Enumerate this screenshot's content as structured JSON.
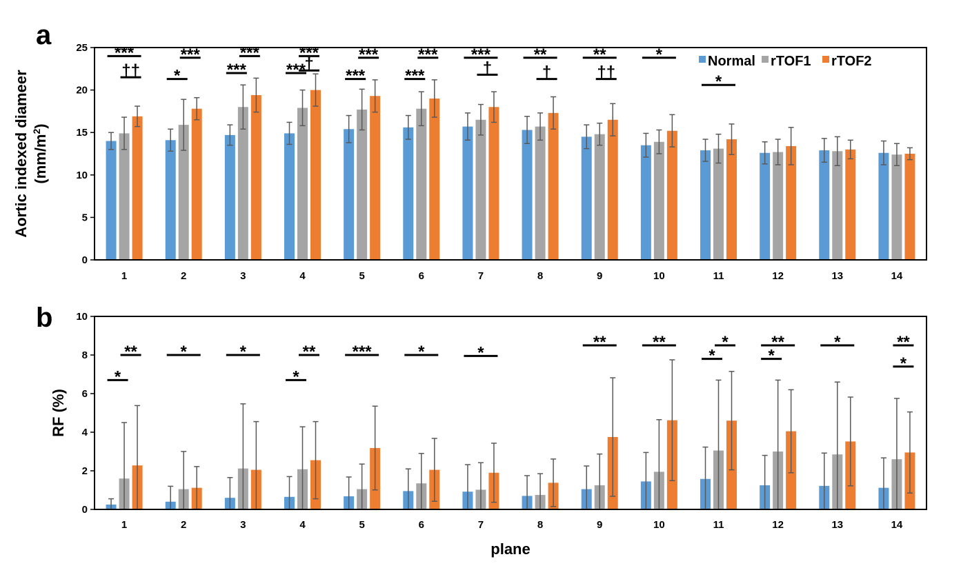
{
  "colors": {
    "Normal": "#5b9bd5",
    "rTOF1": "#a5a5a5",
    "rTOF2": "#ed7d31",
    "errorbar": "#595959"
  },
  "chart_data": [
    {
      "panel": "a",
      "type": "bar",
      "title": "",
      "xlabel": "",
      "ylabel": [
        "Aortic indexed diameer",
        "(mm/m",
        "2",
        ")"
      ],
      "ylim": [
        0,
        25
      ],
      "yticks": [
        0,
        5,
        10,
        15,
        20,
        25
      ],
      "categories": [
        "1",
        "2",
        "3",
        "4",
        "5",
        "6",
        "7",
        "8",
        "9",
        "10",
        "11",
        "12",
        "13",
        "14"
      ],
      "legend": {
        "position": "top-right",
        "items": [
          "Normal",
          "rTOF1",
          "rTOF2"
        ]
      },
      "series": [
        {
          "name": "Normal",
          "values": [
            14.0,
            14.1,
            14.7,
            14.9,
            15.4,
            15.6,
            15.7,
            15.3,
            14.5,
            13.5,
            12.9,
            12.6,
            12.9,
            12.6
          ],
          "errors": [
            1.0,
            1.3,
            1.2,
            1.3,
            1.6,
            1.4,
            1.6,
            1.6,
            1.4,
            1.4,
            1.3,
            1.3,
            1.4,
            1.4
          ]
        },
        {
          "name": "rTOF1",
          "values": [
            14.9,
            15.9,
            18.0,
            17.9,
            17.7,
            17.8,
            16.5,
            15.7,
            14.8,
            13.9,
            13.1,
            12.7,
            12.8,
            12.4
          ],
          "errors": [
            1.9,
            3.0,
            2.6,
            2.1,
            2.4,
            2.0,
            1.8,
            1.6,
            1.3,
            1.4,
            1.7,
            1.5,
            1.7,
            1.3
          ]
        },
        {
          "name": "rTOF2",
          "values": [
            16.9,
            17.8,
            19.4,
            20.0,
            19.3,
            19.0,
            18.0,
            17.3,
            16.5,
            15.2,
            14.2,
            13.4,
            13.0,
            12.5
          ],
          "errors": [
            1.2,
            1.3,
            2.0,
            1.9,
            1.9,
            2.2,
            1.8,
            1.9,
            1.9,
            1.9,
            1.8,
            2.2,
            1.1,
            0.7
          ]
        }
      ],
      "annotations": [
        {
          "category": 1,
          "between": [
            "Normal",
            "rTOF2"
          ],
          "label": "***",
          "level": 24.0
        },
        {
          "category": 1,
          "between": [
            "rTOF1",
            "rTOF2"
          ],
          "label": "††",
          "level": 21.5
        },
        {
          "category": 2,
          "between": [
            "Normal",
            "rTOF1"
          ],
          "label": "*",
          "level": 21.3
        },
        {
          "category": 2,
          "between": [
            "rTOF1",
            "rTOF2"
          ],
          "label": "***",
          "level": 23.8
        },
        {
          "category": 3,
          "between": [
            "Normal",
            "rTOF1"
          ],
          "label": "***",
          "level": 22.0
        },
        {
          "category": 3,
          "between": [
            "rTOF1",
            "rTOF2"
          ],
          "label": "***",
          "level": 24.0
        },
        {
          "category": 4,
          "between": [
            "Normal",
            "rTOF1"
          ],
          "label": "***",
          "level": 22.0
        },
        {
          "category": 4,
          "between": [
            "rTOF1",
            "rTOF2"
          ],
          "label": "***",
          "level": 24.0
        },
        {
          "category": 4,
          "between": [
            "rTOF1",
            "rTOF2"
          ],
          "label": "†",
          "level": 22.3
        },
        {
          "category": 5,
          "between": [
            "Normal",
            "rTOF1"
          ],
          "label": "***",
          "level": 21.3
        },
        {
          "category": 5,
          "between": [
            "rTOF1",
            "rTOF2"
          ],
          "label": "***",
          "level": 23.8
        },
        {
          "category": 6,
          "between": [
            "Normal",
            "rTOF1"
          ],
          "label": "***",
          "level": 21.3
        },
        {
          "category": 6,
          "between": [
            "rTOF1",
            "rTOF2"
          ],
          "label": "***",
          "level": 23.8
        },
        {
          "category": 7,
          "between": [
            "Normal",
            "rTOF2"
          ],
          "label": "***",
          "level": 23.8
        },
        {
          "category": 7,
          "between": [
            "rTOF1",
            "rTOF2"
          ],
          "label": "†",
          "level": 21.8
        },
        {
          "category": 8,
          "between": [
            "Normal",
            "rTOF2"
          ],
          "label": "**",
          "level": 23.8
        },
        {
          "category": 8,
          "between": [
            "rTOF1",
            "rTOF2"
          ],
          "label": "†",
          "level": 21.3
        },
        {
          "category": 9,
          "between": [
            "Normal",
            "rTOF2"
          ],
          "label": "**",
          "level": 23.8
        },
        {
          "category": 9,
          "between": [
            "rTOF1",
            "rTOF2"
          ],
          "label": "††",
          "level": 21.3
        },
        {
          "category": 10,
          "between": [
            "Normal",
            "rTOF2"
          ],
          "label": "*",
          "level": 23.8
        },
        {
          "category": 11,
          "between": [
            "Normal",
            "rTOF2"
          ],
          "label": "*",
          "level": 20.6
        }
      ]
    },
    {
      "panel": "b",
      "type": "bar",
      "title": "",
      "xlabel": "plane",
      "ylabel": [
        "RF (%)"
      ],
      "ylim": [
        0,
        10
      ],
      "yticks": [
        0,
        2,
        4,
        6,
        8,
        10
      ],
      "categories": [
        "1",
        "2",
        "3",
        "4",
        "5",
        "6",
        "7",
        "8",
        "9",
        "10",
        "11",
        "12",
        "13",
        "14"
      ],
      "series": [
        {
          "name": "Normal",
          "values": [
            0.25,
            0.4,
            0.6,
            0.65,
            0.68,
            0.95,
            0.92,
            0.7,
            1.05,
            1.45,
            1.58,
            1.25,
            1.22,
            1.12
          ],
          "errors": [
            0.3,
            0.8,
            1.05,
            1.05,
            1.0,
            1.15,
            1.4,
            1.05,
            1.2,
            1.5,
            1.65,
            1.55,
            1.7,
            1.55
          ]
        },
        {
          "name": "rTOF1",
          "values": [
            1.6,
            1.05,
            2.12,
            2.08,
            1.05,
            1.35,
            1.02,
            0.75,
            1.25,
            1.95,
            3.05,
            3.0,
            2.85,
            2.6
          ],
          "errors": [
            2.9,
            1.95,
            3.35,
            2.2,
            1.3,
            1.55,
            1.4,
            1.1,
            1.62,
            2.7,
            3.65,
            3.7,
            3.75,
            3.15
          ]
        },
        {
          "name": "rTOF2",
          "values": [
            2.28,
            1.12,
            2.05,
            2.55,
            3.18,
            2.05,
            1.9,
            1.38,
            3.75,
            4.62,
            4.6,
            4.05,
            3.52,
            2.95
          ],
          "errors": [
            3.1,
            1.1,
            2.5,
            2.0,
            2.17,
            1.63,
            1.53,
            1.23,
            3.07,
            3.13,
            2.55,
            2.15,
            2.3,
            2.1
          ]
        }
      ],
      "annotations": [
        {
          "category": 1,
          "between": [
            "Normal",
            "rTOF1"
          ],
          "label": "*",
          "level": 6.7
        },
        {
          "category": 1,
          "between": [
            "rTOF1",
            "rTOF2"
          ],
          "label": "**",
          "level": 8.0
        },
        {
          "category": 2,
          "between": [
            "Normal",
            "rTOF2"
          ],
          "label": "*",
          "level": 8.0
        },
        {
          "category": 3,
          "between": [
            "Normal",
            "rTOF2"
          ],
          "label": "*",
          "level": 8.0
        },
        {
          "category": 4,
          "between": [
            "Normal",
            "rTOF1"
          ],
          "label": "*",
          "level": 6.7
        },
        {
          "category": 4,
          "between": [
            "rTOF1",
            "rTOF2"
          ],
          "label": "**",
          "level": 8.0
        },
        {
          "category": 5,
          "between": [
            "Normal",
            "rTOF2"
          ],
          "label": "***",
          "level": 8.0
        },
        {
          "category": 6,
          "between": [
            "Normal",
            "rTOF2"
          ],
          "label": "*",
          "level": 8.0
        },
        {
          "category": 7,
          "between": [
            "Normal",
            "rTOF2"
          ],
          "label": "*",
          "level": 7.95
        },
        {
          "category": 9,
          "between": [
            "Normal",
            "rTOF2"
          ],
          "label": "**",
          "level": 8.5
        },
        {
          "category": 10,
          "between": [
            "Normal",
            "rTOF2"
          ],
          "label": "**",
          "level": 8.5
        },
        {
          "category": 11,
          "between": [
            "rTOF1",
            "rTOF2"
          ],
          "label": "*",
          "level": 8.5
        },
        {
          "category": 11,
          "between": [
            "Normal",
            "rTOF1"
          ],
          "label": "*",
          "level": 7.8
        },
        {
          "category": 12,
          "between": [
            "Normal",
            "rTOF2"
          ],
          "label": "**",
          "level": 8.5
        },
        {
          "category": 12,
          "between": [
            "Normal",
            "rTOF1"
          ],
          "label": "*",
          "level": 7.8
        },
        {
          "category": 13,
          "between": [
            "Normal",
            "rTOF2"
          ],
          "label": "*",
          "level": 8.5
        },
        {
          "category": 14,
          "between": [
            "rTOF1",
            "rTOF2"
          ],
          "label": "**",
          "level": 8.5
        },
        {
          "category": 14,
          "between": [
            "rTOF1",
            "rTOF2"
          ],
          "label": "*",
          "level": 7.4
        }
      ]
    }
  ]
}
